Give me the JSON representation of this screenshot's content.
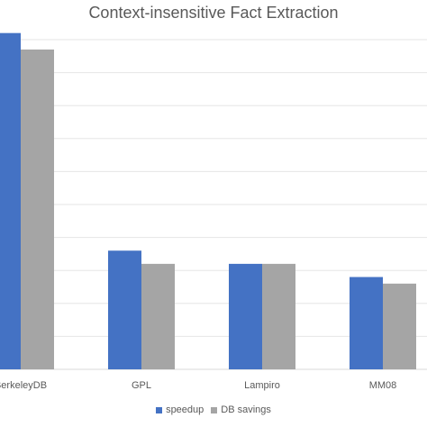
{
  "chart_data": {
    "type": "bar",
    "title": "Context-insensitive Fact Extraction",
    "categories": [
      "BerkeleyDB",
      "GPL",
      "Lampiro",
      "MM08"
    ],
    "series": [
      {
        "name": "speedup",
        "color": "#4472C4",
        "values": [
          10.2,
          3.6,
          3.2,
          2.8
        ]
      },
      {
        "name": "DB savings",
        "color": "#A5A5A5",
        "values": [
          9.7,
          3.2,
          3.2,
          2.6
        ]
      }
    ],
    "ylim": [
      0,
      10
    ],
    "gridlines": true,
    "legend_position": "bottom"
  }
}
